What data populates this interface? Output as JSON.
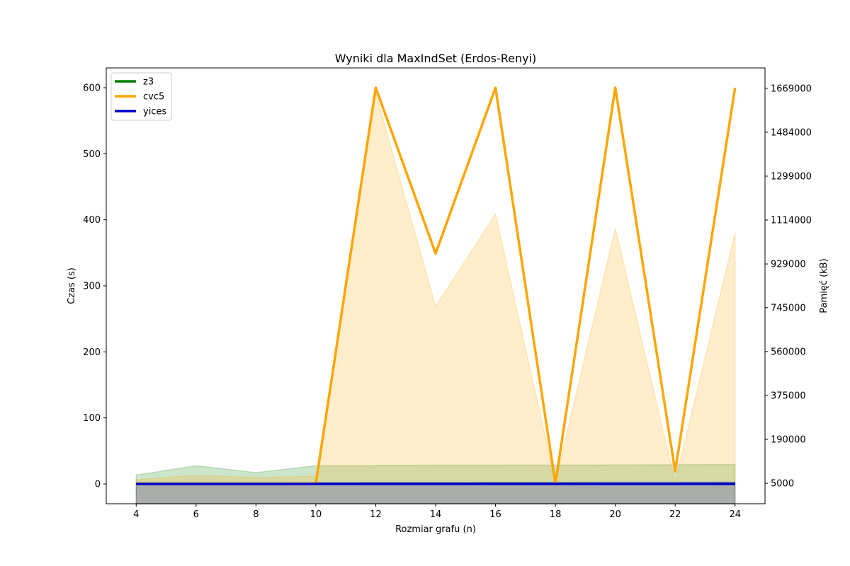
{
  "chart_data": {
    "type": "line",
    "title": "Wyniki dla MaxIndSet (Erdos-Renyi)",
    "xlabel": "Rozmiar grafu (n)",
    "ylabel": "Czas (s)",
    "y2label": "Pamięć (kB)",
    "x": [
      4,
      6,
      8,
      10,
      12,
      14,
      16,
      18,
      20,
      22,
      24
    ],
    "xlim": [
      3,
      25
    ],
    "ylim": [
      -30,
      630
    ],
    "y2lim": [
      -81300,
      1755000
    ],
    "x_ticks": [
      "4",
      "6",
      "8",
      "10",
      "12",
      "14",
      "16",
      "18",
      "20",
      "22",
      "24"
    ],
    "y_ticks": [
      "0",
      "100",
      "200",
      "300",
      "400",
      "500",
      "600"
    ],
    "y2_ticks": [
      "5000",
      "190000",
      "375000",
      "560000",
      "745000",
      "929000",
      "1114000",
      "1299000",
      "1484000",
      "1669000"
    ],
    "legend_position": "upper-left",
    "series": [
      {
        "name": "z3",
        "color": "#008000",
        "time": [
          0.3,
          0.3,
          0.3,
          0.3,
          0.3,
          0.3,
          0.3,
          0.3,
          0.3,
          0.3,
          0.3
        ],
        "memory": [
          39500,
          79000,
          50000,
          79000,
          80000,
          81000,
          81000,
          81500,
          82000,
          83000,
          84000
        ]
      },
      {
        "name": "cvc5",
        "color": "#ffa500",
        "time": [
          0.5,
          0.5,
          0.5,
          0.5,
          600,
          349,
          600,
          0.5,
          600,
          19,
          600
        ],
        "memory": [
          20000,
          39000,
          29000,
          35000,
          1650000,
          751000,
          1140000,
          12000,
          1080000,
          12000,
          1060000
        ]
      },
      {
        "name": "yices",
        "color": "#0000cc",
        "time": [
          0.05,
          0.05,
          0.05,
          0.05,
          0.05,
          0.05,
          0.05,
          0.05,
          0.05,
          0.05,
          0.05
        ],
        "memory": [
          6000,
          6500,
          7000,
          7500,
          8000,
          8500,
          9000,
          9000,
          9500,
          9500,
          10000
        ]
      }
    ]
  }
}
